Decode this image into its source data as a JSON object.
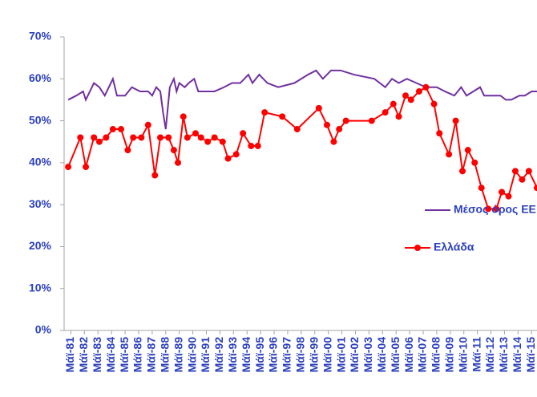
{
  "chart_data": {
    "type": "line",
    "xlim": [
      1980.9,
      2015.8
    ],
    "xticks": [
      {
        "value": 1981.4,
        "label": "Μάϊ-81"
      },
      {
        "value": 1982.4,
        "label": "Μάϊ-82"
      },
      {
        "value": 1983.4,
        "label": "Μάϊ-83"
      },
      {
        "value": 1984.4,
        "label": "Μάϊ-84"
      },
      {
        "value": 1985.4,
        "label": "Μάϊ-85"
      },
      {
        "value": 1986.4,
        "label": "Μάϊ-86"
      },
      {
        "value": 1987.4,
        "label": "Μάϊ-87"
      },
      {
        "value": 1988.4,
        "label": "Μάϊ-88"
      },
      {
        "value": 1989.4,
        "label": "Μάϊ-89"
      },
      {
        "value": 1990.4,
        "label": "Μάϊ-90"
      },
      {
        "value": 1991.4,
        "label": "Μάϊ-91"
      },
      {
        "value": 1992.4,
        "label": "Μάϊ-92"
      },
      {
        "value": 1993.4,
        "label": "Μάϊ-93"
      },
      {
        "value": 1994.4,
        "label": "Μάϊ-94"
      },
      {
        "value": 1995.4,
        "label": "Μάϊ-95"
      },
      {
        "value": 1996.4,
        "label": "Μάϊ-96"
      },
      {
        "value": 1997.4,
        "label": "Μάϊ-97"
      },
      {
        "value": 1998.4,
        "label": "Μάϊ-98"
      },
      {
        "value": 1999.4,
        "label": "Μάϊ-99"
      },
      {
        "value": 2000.4,
        "label": "Μάϊ-00"
      },
      {
        "value": 2001.4,
        "label": "Μάϊ-01"
      },
      {
        "value": 2002.4,
        "label": "Μάϊ-02"
      },
      {
        "value": 2003.4,
        "label": "Μάϊ-03"
      },
      {
        "value": 2004.4,
        "label": "Μάϊ-04"
      },
      {
        "value": 2005.4,
        "label": "Μάϊ-05"
      },
      {
        "value": 2006.4,
        "label": "Μάϊ-06"
      },
      {
        "value": 2007.4,
        "label": "Μάϊ-07"
      },
      {
        "value": 2008.4,
        "label": "Μάϊ-08"
      },
      {
        "value": 2009.4,
        "label": "Μάϊ-09"
      },
      {
        "value": 2010.4,
        "label": "Μάϊ-10"
      },
      {
        "value": 2011.4,
        "label": "Μάϊ-11"
      },
      {
        "value": 2012.4,
        "label": "Μάϊ-12"
      },
      {
        "value": 2013.4,
        "label": "Μάϊ-13"
      },
      {
        "value": 2014.4,
        "label": "Μάϊ-14"
      },
      {
        "value": 2015.4,
        "label": "Μάϊ-15"
      }
    ],
    "ylim": [
      0,
      70
    ],
    "yticks": [
      {
        "value": 0,
        "label": "0%"
      },
      {
        "value": 10,
        "label": "10%"
      },
      {
        "value": 20,
        "label": "20%"
      },
      {
        "value": 30,
        "label": "30%"
      },
      {
        "value": 40,
        "label": "40%"
      },
      {
        "value": 50,
        "label": "50%"
      },
      {
        "value": 60,
        "label": "60%"
      },
      {
        "value": 70,
        "label": "70%"
      }
    ],
    "grid": false,
    "legend": "right",
    "series": [
      {
        "name": "Μέσος όρος ΕΕ",
        "color": "#7030a0",
        "markers": false,
        "x": [
          1981.2,
          1981.8,
          1982.3,
          1982.5,
          1983.1,
          1983.5,
          1983.9,
          1984.5,
          1984.8,
          1985.4,
          1985.9,
          1986.5,
          1987.1,
          1987.4,
          1987.7,
          1988.0,
          1988.2,
          1988.4,
          1988.7,
          1989.0,
          1989.2,
          1989.4,
          1989.8,
          1990.1,
          1990.5,
          1990.8,
          1991.3,
          1992.0,
          1992.7,
          1993.3,
          1993.9,
          1994.5,
          1994.8,
          1995.3,
          1995.9,
          1996.7,
          1997.9,
          1998.9,
          1999.5,
          2000.0,
          2000.6,
          2001.3,
          2002.3,
          2003.8,
          2004.6,
          2005.1,
          2005.6,
          2006.2,
          2006.9,
          2007.6,
          2008.4,
          2009.0,
          2009.7,
          2010.2,
          2010.6,
          2011.1,
          2011.6,
          2011.9,
          2012.5,
          2013.1,
          2013.5,
          2013.9,
          2014.5,
          2014.9,
          2015.4,
          2015.8
        ],
        "values": [
          55,
          56,
          57,
          55,
          59,
          58,
          56,
          60,
          56,
          56,
          58,
          57,
          57,
          56,
          58,
          57,
          52,
          48,
          58,
          60,
          57,
          59,
          58,
          59,
          60,
          57,
          57,
          57,
          58,
          59,
          59,
          61,
          59,
          61,
          59,
          58,
          59,
          61,
          62,
          60,
          62,
          62,
          61,
          60,
          58,
          60,
          59,
          60,
          59,
          58,
          58,
          57,
          56,
          58,
          56,
          57,
          58,
          56,
          56,
          56,
          55,
          55,
          56,
          56,
          57,
          57
        ]
      },
      {
        "name": "Ελλάδα",
        "color": "#ff0000",
        "markers": true,
        "x": [
          1981.2,
          1982.1,
          1982.5,
          1983.1,
          1983.5,
          1984.0,
          1984.5,
          1985.1,
          1985.6,
          1986.0,
          1986.6,
          1987.1,
          1987.6,
          1988.0,
          1988.6,
          1989.0,
          1989.3,
          1989.7,
          1990.0,
          1990.6,
          1991.0,
          1991.5,
          1992.0,
          1992.6,
          1993.0,
          1993.6,
          1994.1,
          1994.7,
          1995.2,
          1995.7,
          1997.0,
          1998.1,
          1999.7,
          2000.3,
          2000.8,
          2001.2,
          2001.7,
          2003.6,
          2004.6,
          2005.2,
          2005.6,
          2006.1,
          2006.5,
          2007.1,
          2007.6,
          2008.2,
          2008.6,
          2009.3,
          2009.8,
          2010.3,
          2010.7,
          2011.2,
          2011.7,
          2012.2,
          2012.8,
          2013.2,
          2013.7,
          2014.2,
          2014.7,
          2015.2,
          2015.8
        ],
        "values": [
          39,
          46,
          39,
          46,
          45,
          46,
          48,
          48,
          43,
          46,
          46,
          49,
          37,
          46,
          46,
          43,
          40,
          51,
          46,
          47,
          46,
          45,
          46,
          45,
          41,
          42,
          47,
          44,
          44,
          52,
          51,
          48,
          53,
          49,
          45,
          48,
          50,
          50,
          52,
          54,
          51,
          56,
          55,
          57,
          58,
          54,
          47,
          42,
          50,
          38,
          43,
          40,
          34,
          29,
          29,
          33,
          32,
          38,
          36,
          38,
          34
        ]
      }
    ]
  }
}
